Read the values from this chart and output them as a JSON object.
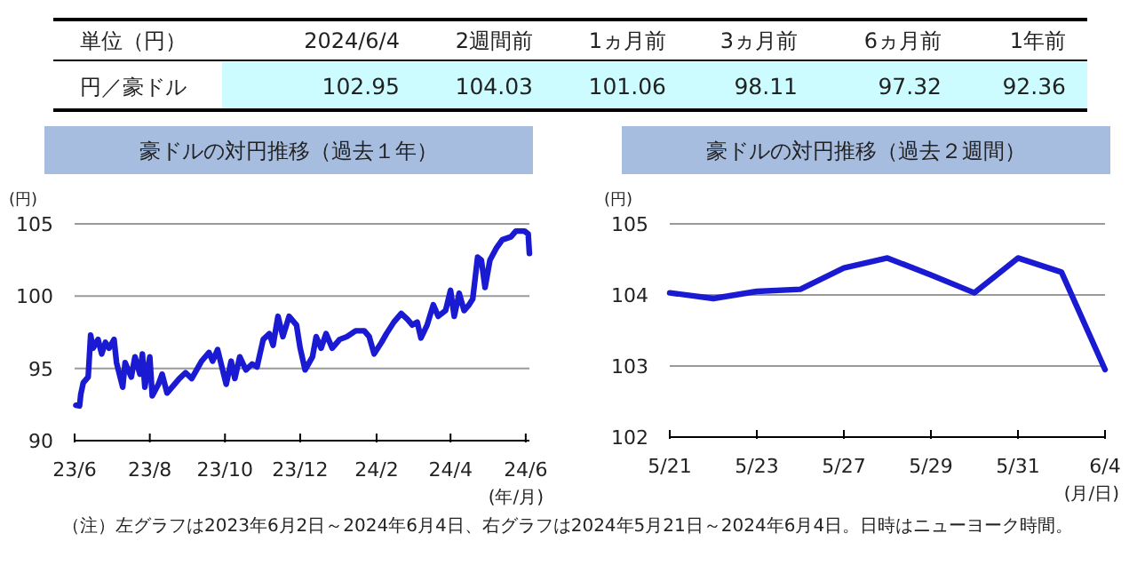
{
  "chart_data": [
    {
      "type": "other",
      "annotations": [
        "単位（円）",
        "円／豪ドル"
      ],
      "categories": [
        "2024/6/4",
        "2週間前",
        "1ヵ月前",
        "3ヵ月前",
        "6ヵ月前",
        "1年前"
      ],
      "values": [
        102.95,
        104.03,
        101.06,
        98.11,
        97.32,
        92.36
      ],
      "data_labels": true,
      "color": "#ccfcff"
    },
    {
      "type": "line",
      "title": "豪ドルの対円推移（過去１年）",
      "ylabel": "(円)",
      "xlabel": "(年/月)",
      "color": "#1a1ad2",
      "x": [
        "2023-06-02",
        "2023-06-05",
        "2023-06-06",
        "2023-06-08",
        "2023-06-12",
        "2023-06-14",
        "2023-06-16",
        "2023-06-20",
        "2023-06-23",
        "2023-06-26",
        "2023-06-29",
        "2023-07-03",
        "2023-07-05",
        "2023-07-10",
        "2023-07-12",
        "2023-07-17",
        "2023-07-20",
        "2023-07-24",
        "2023-07-26",
        "2023-07-28",
        "2023-08-01",
        "2023-08-03",
        "2023-08-08",
        "2023-08-11",
        "2023-08-15",
        "2023-08-21",
        "2023-08-25",
        "2023-08-30",
        "2023-09-04",
        "2023-09-08",
        "2023-09-12",
        "2023-09-18",
        "2023-09-21",
        "2023-09-25",
        "2023-10-02",
        "2023-10-06",
        "2023-10-09",
        "2023-10-13",
        "2023-10-18",
        "2023-10-23",
        "2023-10-27",
        "2023-11-01",
        "2023-11-06",
        "2023-11-09",
        "2023-11-13",
        "2023-11-17",
        "2023-11-22",
        "2023-11-28",
        "2023-12-01",
        "2023-12-05",
        "2023-12-11",
        "2023-12-14",
        "2023-12-18",
        "2023-12-22",
        "2023-12-27",
        "2024-01-02",
        "2024-01-08",
        "2024-01-15",
        "2024-01-22",
        "2024-01-26",
        "2024-01-30",
        "2024-02-05",
        "2024-02-09",
        "2024-02-15",
        "2024-02-21",
        "2024-02-26",
        "2024-03-01",
        "2024-03-05",
        "2024-03-08",
        "2024-03-13",
        "2024-03-18",
        "2024-03-22",
        "2024-03-28",
        "2024-04-01",
        "2024-04-04",
        "2024-04-08",
        "2024-04-12",
        "2024-04-16",
        "2024-04-19",
        "2024-04-23",
        "2024-04-26",
        "2024-04-29",
        "2024-05-03",
        "2024-05-08",
        "2024-05-13",
        "2024-05-20",
        "2024-05-24",
        "2024-05-28",
        "2024-05-31",
        "2024-06-03",
        "2024-06-04"
      ],
      "values": [
        92.45,
        92.4,
        93.2,
        94.0,
        94.4,
        97.3,
        96.4,
        97.0,
        96.0,
        96.8,
        96.4,
        97.0,
        95.4,
        93.7,
        95.4,
        94.4,
        95.8,
        94.6,
        96.0,
        93.7,
        95.8,
        93.1,
        93.9,
        94.6,
        93.3,
        93.9,
        94.3,
        94.7,
        94.3,
        94.9,
        95.5,
        96.1,
        95.5,
        96.3,
        93.9,
        95.5,
        94.3,
        95.8,
        94.9,
        95.3,
        95.1,
        97.0,
        97.4,
        96.6,
        98.6,
        97.2,
        98.6,
        98.0,
        96.4,
        94.9,
        95.8,
        97.2,
        96.4,
        97.4,
        96.4,
        97.0,
        97.2,
        97.6,
        97.6,
        97.2,
        96.0,
        96.8,
        97.4,
        98.2,
        98.8,
        98.4,
        98.0,
        98.2,
        97.1,
        98.0,
        99.4,
        98.6,
        99.0,
        100.4,
        98.6,
        100.2,
        99.0,
        99.4,
        99.8,
        102.7,
        102.5,
        100.6,
        102.5,
        103.3,
        103.9,
        104.1,
        104.5,
        104.5,
        104.5,
        104.3,
        102.95
      ],
      "xlim": [
        "2023-06-01",
        "2024-06-04"
      ],
      "xticks": [
        {
          "value": "2023-06-01",
          "label": "23/6"
        },
        {
          "value": "2023-08-01",
          "label": "23/8"
        },
        {
          "value": "2023-10-01",
          "label": "23/10"
        },
        {
          "value": "2023-12-01",
          "label": "23/12"
        },
        {
          "value": "2024-02-01",
          "label": "24/2"
        },
        {
          "value": "2024-04-01",
          "label": "24/4"
        },
        {
          "value": "2024-06-01",
          "label": "24/6"
        }
      ],
      "ylim": [
        90,
        105
      ],
      "yticks": [
        90,
        95,
        100,
        105
      ],
      "grid": "y",
      "marker": "none",
      "line_style": "solid",
      "annotations": [
        "（注）左グラフは2023年6月2日～2024年6月4日、右グラフは2024年5月21日～2024年6月4日。日時はニューヨーク時間。"
      ]
    },
    {
      "type": "line",
      "title": "豪ドルの対円推移（過去２週間）",
      "ylabel": "(円)",
      "xlabel": "(月/日)",
      "color": "#1a1ad2",
      "categories": [
        "5/21",
        null,
        "5/23",
        null,
        "5/27",
        null,
        "5/29",
        null,
        "5/31",
        null,
        "6/4"
      ],
      "values": [
        104.03,
        103.95,
        104.05,
        104.08,
        104.38,
        104.52,
        104.28,
        104.03,
        104.52,
        104.32,
        102.95
      ],
      "ylim": [
        102,
        105
      ],
      "yticks": [
        102,
        103,
        104,
        105
      ],
      "grid": "y",
      "marker": "none",
      "line_style": "solid"
    }
  ]
}
